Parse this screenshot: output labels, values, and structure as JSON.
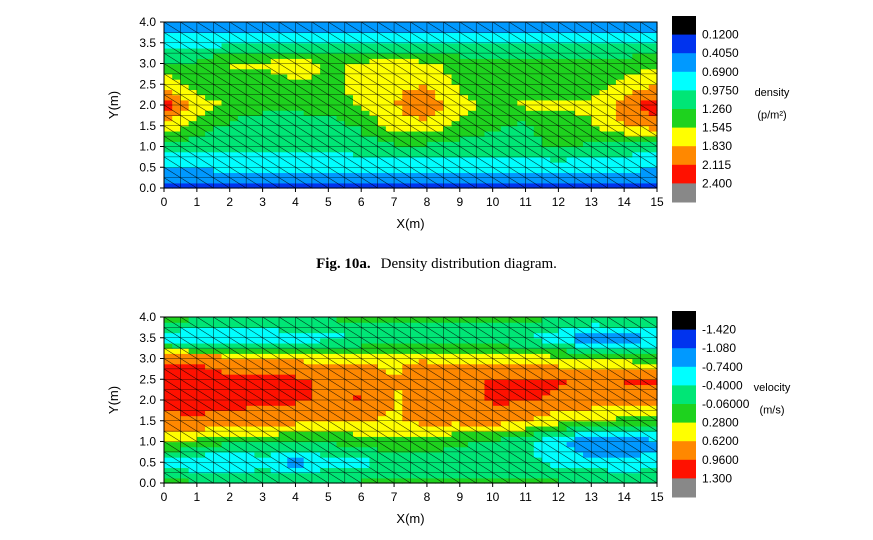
{
  "caption": {
    "label": "Fig. 10a.",
    "text": "Density distribution diagram."
  },
  "chart_data": [
    {
      "type": "heatmap",
      "title": "",
      "xlabel": "X(m)",
      "ylabel": "Y(m)",
      "xlim": [
        0,
        15
      ],
      "ylim": [
        0,
        4
      ],
      "x_ticks": [
        "0",
        "1",
        "2",
        "3",
        "4",
        "5",
        "6",
        "7",
        "8",
        "9",
        "10",
        "11",
        "12",
        "13",
        "14",
        "15"
      ],
      "y_ticks": [
        "0.0",
        "0.5",
        "1.0",
        "1.5",
        "2.0",
        "2.5",
        "3.0",
        "3.5",
        "4.0"
      ],
      "legend_title": "density",
      "legend_unit": "(p/m²)",
      "levels": [
        "0.1200",
        "0.4050",
        "0.6900",
        "0.9750",
        "1.260",
        "1.545",
        "1.830",
        "2.115",
        "2.400"
      ],
      "level_values": [
        0.12,
        0.405,
        0.69,
        0.975,
        1.26,
        1.545,
        1.83,
        2.115,
        2.4
      ],
      "colors": [
        "#000000",
        "#0033ee",
        "#0099ff",
        "#00ffff",
        "#00e676",
        "#1ed21e",
        "#ffff00",
        "#ff8800",
        "#ff1100",
        "#888888"
      ],
      "grid_y": [
        0.0,
        0.5,
        1.0,
        1.5,
        2.0,
        2.5,
        3.0,
        3.5,
        4.0
      ],
      "grid_x": [
        0,
        1,
        2,
        3,
        4,
        5,
        6,
        7,
        8,
        9,
        10,
        11,
        12,
        13,
        14,
        15
      ],
      "z": [
        [
          0.3,
          0.3,
          0.3,
          0.3,
          0.3,
          0.3,
          0.3,
          0.3,
          0.3,
          0.3,
          0.3,
          0.3,
          0.3,
          0.3,
          0.3,
          0.3
        ],
        [
          0.7,
          0.7,
          0.8,
          0.8,
          0.8,
          0.8,
          0.8,
          0.8,
          0.8,
          0.8,
          0.8,
          0.8,
          0.8,
          0.8,
          0.8,
          0.7
        ],
        [
          1.1,
          1.1,
          1.0,
          1.0,
          1.0,
          1.0,
          1.1,
          1.2,
          1.2,
          1.1,
          1.1,
          1.2,
          1.3,
          1.2,
          1.1,
          1.1
        ],
        [
          1.8,
          1.4,
          1.2,
          1.0,
          1.0,
          1.1,
          1.3,
          1.7,
          1.7,
          1.5,
          1.3,
          1.2,
          1.4,
          1.5,
          1.8,
          2.0
        ],
        [
          2.3,
          1.7,
          1.5,
          1.4,
          1.4,
          1.4,
          1.6,
          1.8,
          2.1,
          1.6,
          1.5,
          1.6,
          1.6,
          1.6,
          2.0,
          2.3
        ],
        [
          1.8,
          1.4,
          1.4,
          1.4,
          1.5,
          1.5,
          1.6,
          1.8,
          1.8,
          1.5,
          1.4,
          1.3,
          1.4,
          1.4,
          1.6,
          1.8
        ],
        [
          1.3,
          1.3,
          1.6,
          1.6,
          1.7,
          1.5,
          1.6,
          1.7,
          1.6,
          1.4,
          1.3,
          1.3,
          1.3,
          1.3,
          1.4,
          1.5
        ],
        [
          0.9,
          0.9,
          0.9,
          1.0,
          1.0,
          1.0,
          1.0,
          1.0,
          1.0,
          1.0,
          1.0,
          1.0,
          1.0,
          1.0,
          1.0,
          1.0
        ],
        [
          0.4,
          0.4,
          0.4,
          0.4,
          0.4,
          0.4,
          0.4,
          0.4,
          0.4,
          0.4,
          0.4,
          0.4,
          0.4,
          0.4,
          0.4,
          0.4
        ]
      ]
    },
    {
      "type": "heatmap",
      "title": "",
      "xlabel": "X(m)",
      "ylabel": "Y(m)",
      "xlim": [
        0,
        15
      ],
      "ylim": [
        0,
        4
      ],
      "x_ticks": [
        "0",
        "1",
        "2",
        "3",
        "4",
        "5",
        "6",
        "7",
        "8",
        "9",
        "10",
        "11",
        "12",
        "13",
        "14",
        "15"
      ],
      "y_ticks": [
        "0.0",
        "0.5",
        "1.0",
        "1.5",
        "2.0",
        "2.5",
        "3.0",
        "3.5",
        "4.0"
      ],
      "legend_title": "velocity",
      "legend_unit": "(m/s)",
      "levels": [
        "-1.420",
        "-1.080",
        "-0.7400",
        "-0.4000",
        "-0.06000",
        "0.2800",
        "0.6200",
        "0.9600",
        "1.300"
      ],
      "level_values": [
        -1.42,
        -1.08,
        -0.74,
        -0.4,
        -0.06,
        0.28,
        0.62,
        0.96,
        1.3
      ],
      "colors": [
        "#000000",
        "#0033ee",
        "#0099ff",
        "#00ffff",
        "#00e676",
        "#1ed21e",
        "#ffff00",
        "#ff8800",
        "#ff1100",
        "#888888"
      ],
      "grid_y": [
        0.0,
        0.5,
        1.0,
        1.5,
        2.0,
        2.5,
        3.0,
        3.5,
        4.0
      ],
      "grid_x": [
        0,
        1,
        2,
        3,
        4,
        5,
        6,
        7,
        8,
        9,
        10,
        11,
        12,
        13,
        14,
        15
      ],
      "z": [
        [
          0.1,
          0.0,
          0.0,
          0.0,
          0.0,
          0.0,
          0.0,
          0.0,
          0.0,
          0.0,
          0.0,
          0.0,
          0.0,
          0.0,
          0.0,
          0.0
        ],
        [
          -0.5,
          -0.7,
          -0.8,
          -0.6,
          -0.9,
          -0.6,
          -0.5,
          -0.3,
          -0.4,
          -0.3,
          -0.4,
          -0.3,
          -0.5,
          -0.6,
          -0.7,
          -0.6
        ],
        [
          0.4,
          0.2,
          0.0,
          0.0,
          0.0,
          0.0,
          0.1,
          0.2,
          0.2,
          0.0,
          -0.1,
          -0.3,
          -0.7,
          -1.1,
          -1.0,
          -0.8
        ],
        [
          0.8,
          0.9,
          0.8,
          0.8,
          0.7,
          0.7,
          0.6,
          0.6,
          0.7,
          0.7,
          0.8,
          0.6,
          0.4,
          0.3,
          0.2,
          0.1
        ],
        [
          1.2,
          1.1,
          1.1,
          1.0,
          1.0,
          0.9,
          1.0,
          0.6,
          0.7,
          0.8,
          1.0,
          1.0,
          0.9,
          0.8,
          0.7,
          0.7
        ],
        [
          1.1,
          1.1,
          1.0,
          1.1,
          1.0,
          0.9,
          0.9,
          0.6,
          0.8,
          0.9,
          1.0,
          1.0,
          1.0,
          0.9,
          1.0,
          1.0
        ],
        [
          0.9,
          0.9,
          0.8,
          0.7,
          0.6,
          0.5,
          0.5,
          0.6,
          0.6,
          0.5,
          0.5,
          0.4,
          0.4,
          0.3,
          0.2,
          0.1
        ],
        [
          -0.6,
          -0.8,
          -0.8,
          -0.7,
          -0.6,
          -0.5,
          -0.4,
          -0.3,
          -0.3,
          -0.3,
          -0.3,
          -0.4,
          -0.6,
          -1.1,
          -1.0,
          -0.7
        ],
        [
          0.1,
          0.0,
          0.0,
          0.0,
          0.0,
          0.0,
          0.0,
          0.0,
          0.0,
          0.0,
          0.0,
          0.0,
          0.0,
          0.0,
          0.0,
          0.0
        ]
      ]
    }
  ]
}
